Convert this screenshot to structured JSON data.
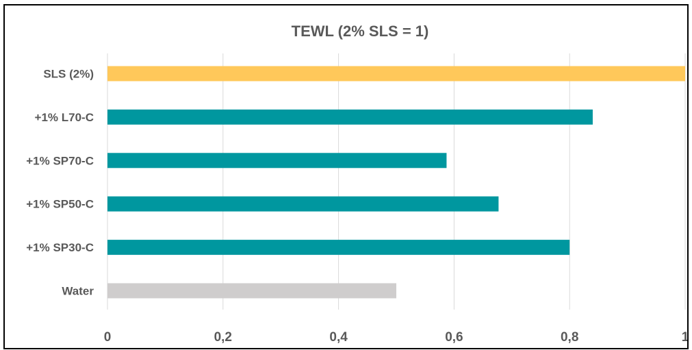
{
  "chart_data": {
    "type": "bar",
    "orientation": "horizontal",
    "title": "TEWL (2% SLS = 1)",
    "xlabel": "",
    "ylabel": "",
    "categories": [
      "SLS (2%)",
      "+1% L70-C",
      "+1% SP70-C",
      "+1% SP50-C",
      "+1% SP30-C",
      "Water"
    ],
    "values": [
      1.0,
      0.84,
      0.587,
      0.677,
      0.8,
      0.5
    ],
    "bar_colors": [
      "#FFC85A",
      "#00979F",
      "#00979F",
      "#00979F",
      "#00979F",
      "#CFCDCD"
    ],
    "xlim": [
      0,
      1
    ],
    "x_ticks": [
      "0",
      "0,2",
      "0,4",
      "0,6",
      "0,8",
      "1"
    ],
    "grid": "vertical",
    "legend": "none"
  }
}
